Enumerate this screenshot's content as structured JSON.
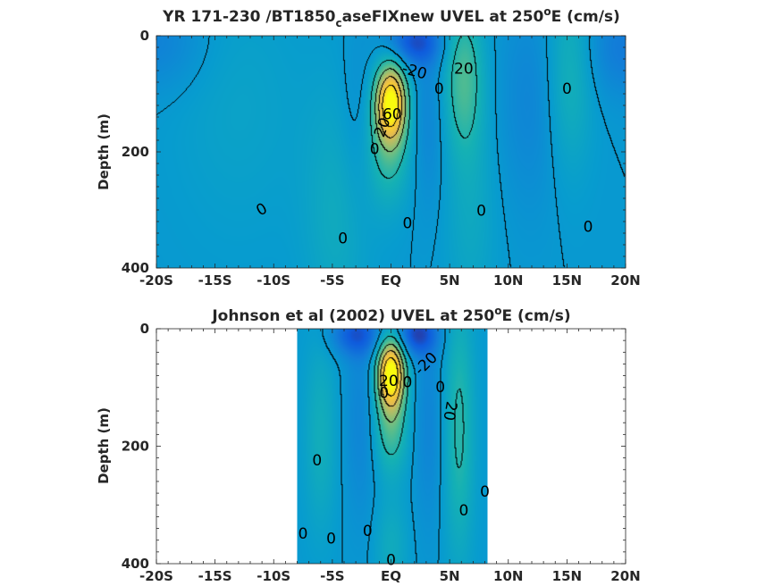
{
  "chart_data": [
    {
      "type": "heatmap",
      "title": "YR 171-230 /BT1850",
      "title_sub": "c",
      "title_rest": "aseFIXnew UVEL at 250",
      "title_sup": "o",
      "title_end": "E (cm/s)",
      "ylabel": "Depth (m)",
      "xlim": [
        -20,
        20
      ],
      "ylim": [
        0,
        400
      ],
      "y_reversed": true,
      "colormap": "parula",
      "xticks": [
        -20,
        -15,
        -10,
        -5,
        0,
        5,
        10,
        15,
        20
      ],
      "xticklabels": [
        "-20S",
        "-15S",
        "-10S",
        "-5S",
        "EQ",
        "5N",
        "10N",
        "15N",
        "20N"
      ],
      "yticks": [
        0,
        200,
        400
      ],
      "yticklabels": [
        "0",
        "200",
        "400"
      ],
      "data_extent": [
        -20,
        20
      ],
      "contour_labels": [
        {
          "text": "-20",
          "lat": 2.0,
          "depth": 62,
          "rot": 15
        },
        {
          "text": "20",
          "lat": 6.2,
          "depth": 58,
          "rot": 0
        },
        {
          "text": "0",
          "lat": 4.1,
          "depth": 92,
          "rot": 0
        },
        {
          "text": "0",
          "lat": 15.0,
          "depth": 92,
          "rot": 0
        },
        {
          "text": "60",
          "lat": 0.1,
          "depth": 136,
          "rot": 0
        },
        {
          "text": "20",
          "lat": -0.7,
          "depth": 158,
          "rot": -70
        },
        {
          "text": "0",
          "lat": -1.4,
          "depth": 196,
          "rot": 0
        },
        {
          "text": "0",
          "lat": -11.0,
          "depth": 300,
          "rot": -30
        },
        {
          "text": "0",
          "lat": 1.4,
          "depth": 324,
          "rot": 0
        },
        {
          "text": "0",
          "lat": 7.7,
          "depth": 302,
          "rot": 0
        },
        {
          "text": "0",
          "lat": 16.8,
          "depth": 330,
          "rot": 0
        },
        {
          "text": "0",
          "lat": -4.1,
          "depth": 350,
          "rot": 0
        }
      ],
      "features": [
        {
          "lat": 0.0,
          "depth": 115,
          "amp": 90,
          "w": 0.9,
          "h": 45
        },
        {
          "lat": -0.2,
          "depth": 190,
          "amp": 25,
          "w": 1.3,
          "h": 70
        },
        {
          "lat": 6.2,
          "depth": 70,
          "amp": 28,
          "w": 1.2,
          "h": 90
        },
        {
          "lat": 6.8,
          "depth": 300,
          "amp": 10,
          "w": 1.5,
          "h": 140
        },
        {
          "lat": 15.2,
          "depth": 60,
          "amp": 18,
          "w": 1.4,
          "h": 120
        },
        {
          "lat": -4.5,
          "depth": 300,
          "amp": 12,
          "w": 2.0,
          "h": 150
        },
        {
          "lat": -13.0,
          "depth": 120,
          "amp": 6,
          "w": 4.0,
          "h": 160
        },
        {
          "lat": 2.0,
          "depth": 12,
          "amp": -32,
          "w": 1.6,
          "h": 28
        },
        {
          "lat": -2.8,
          "depth": 160,
          "amp": -8,
          "w": 1.2,
          "h": 120
        },
        {
          "lat": 3.2,
          "depth": 140,
          "amp": -10,
          "w": 1.0,
          "h": 110
        },
        {
          "lat": 12.0,
          "depth": 110,
          "amp": -10,
          "w": 2.0,
          "h": 130
        },
        {
          "lat": 20.0,
          "depth": 20,
          "amp": -15,
          "w": 2.5,
          "h": 60
        },
        {
          "lat": -20.0,
          "depth": 10,
          "amp": -12,
          "w": 3.0,
          "h": 60
        }
      ],
      "contour_levels": [
        0,
        20,
        40,
        60,
        80
      ]
    },
    {
      "type": "heatmap",
      "title": "Johnson et al (2002) UVEL at 250",
      "title_sub": "",
      "title_rest": "",
      "title_sup": "o",
      "title_end": "E (cm/s)",
      "ylabel": "Depth (m)",
      "xlim": [
        -20,
        20
      ],
      "ylim": [
        0,
        400
      ],
      "y_reversed": true,
      "colormap": "parula",
      "xticks": [
        -20,
        -15,
        -10,
        -5,
        0,
        5,
        10,
        15,
        20
      ],
      "xticklabels": [
        "-20S",
        "-15S",
        "-10S",
        "-5S",
        "EQ",
        "5N",
        "10N",
        "15N",
        "20N"
      ],
      "yticks": [
        0,
        200,
        400
      ],
      "yticklabels": [
        "0",
        "200",
        "400"
      ],
      "data_extent": [
        -8,
        8.2
      ],
      "contour_labels": [
        {
          "text": "-20",
          "lat": 3.0,
          "depth": 60,
          "rot": -45
        },
        {
          "text": "20",
          "lat": -0.2,
          "depth": 90,
          "rot": 0
        },
        {
          "text": "0",
          "lat": -0.6,
          "depth": 110,
          "rot": 0
        },
        {
          "text": "0",
          "lat": 1.4,
          "depth": 92,
          "rot": 0
        },
        {
          "text": "0",
          "lat": 4.2,
          "depth": 100,
          "rot": 0
        },
        {
          "text": "20",
          "lat": 5.0,
          "depth": 140,
          "rot": 100
        },
        {
          "text": "0",
          "lat": -6.3,
          "depth": 225,
          "rot": 0
        },
        {
          "text": "0",
          "lat": 8.0,
          "depth": 278,
          "rot": 0
        },
        {
          "text": "0",
          "lat": 6.2,
          "depth": 310,
          "rot": 0
        },
        {
          "text": "0",
          "lat": -7.5,
          "depth": 350,
          "rot": 0
        },
        {
          "text": "0",
          "lat": -5.1,
          "depth": 358,
          "rot": 0
        },
        {
          "text": "0",
          "lat": -2.0,
          "depth": 345,
          "rot": 0
        },
        {
          "text": "0",
          "lat": 0.0,
          "depth": 395,
          "rot": 0
        }
      ],
      "features": [
        {
          "lat": 0.0,
          "depth": 75,
          "amp": 95,
          "w": 0.8,
          "h": 40
        },
        {
          "lat": 0.0,
          "depth": 160,
          "amp": 30,
          "w": 1.0,
          "h": 60
        },
        {
          "lat": 5.8,
          "depth": 170,
          "amp": 22,
          "w": 0.9,
          "h": 160
        },
        {
          "lat": -6.0,
          "depth": 180,
          "amp": 14,
          "w": 1.0,
          "h": 120
        },
        {
          "lat": 0.0,
          "depth": 370,
          "amp": 12,
          "w": 1.0,
          "h": 60
        },
        {
          "lat": 2.2,
          "depth": 10,
          "amp": -35,
          "w": 1.2,
          "h": 25
        },
        {
          "lat": -3.0,
          "depth": 10,
          "amp": -28,
          "w": 1.5,
          "h": 25
        },
        {
          "lat": -2.6,
          "depth": 150,
          "amp": -10,
          "w": 1.0,
          "h": 130
        },
        {
          "lat": 3.2,
          "depth": 160,
          "amp": -10,
          "w": 0.9,
          "h": 130
        }
      ],
      "contour_levels": [
        0,
        20,
        40,
        60,
        80
      ]
    }
  ]
}
